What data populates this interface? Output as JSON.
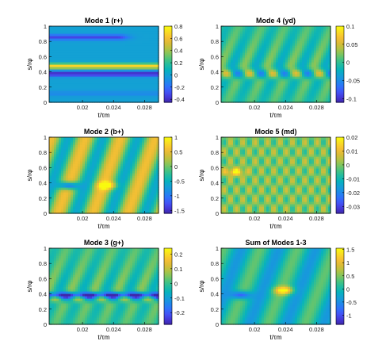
{
  "chart_data": [
    {
      "type": "heatmap",
      "title": "Mode 1 (r+)",
      "xlabel": "t/τm",
      "ylabel": "s/rφ",
      "xlim": [
        0.0157,
        0.0298
      ],
      "ylim": [
        0,
        1
      ],
      "xticks": [
        "0.02",
        "0.024",
        "0.028"
      ],
      "xtick_values": [
        0.02,
        0.024,
        0.028
      ],
      "yticks": [
        "0",
        "0.2",
        "0.4",
        "0.6",
        "0.8",
        "1"
      ],
      "clim": [
        -0.45,
        0.8
      ],
      "colorbar_ticks": [
        "-0.4",
        "-0.2",
        "0",
        "0.2",
        "0.4",
        "0.6",
        "0.8"
      ],
      "colorbar_values": [
        -0.4,
        -0.2,
        0,
        0.2,
        0.4,
        0.6,
        0.8
      ],
      "features": [
        {
          "kind": "band",
          "y": 0.86,
          "value": -0.32,
          "x_range": [
            0.0157,
            0.0245
          ]
        },
        {
          "kind": "band",
          "y": 0.48,
          "value": 0.7,
          "x_range": [
            0.0157,
            0.0298
          ]
        },
        {
          "kind": "band",
          "y": 0.38,
          "value": -0.42,
          "x_range": [
            0.0157,
            0.0298
          ]
        },
        {
          "kind": "band",
          "y": 0.12,
          "value": -0.1,
          "x_range": [
            0.0157,
            0.0298
          ]
        }
      ]
    },
    {
      "type": "heatmap",
      "title": "Mode 4 (yd)",
      "xlabel": "t/τm",
      "ylabel": "s/rφ",
      "xlim": [
        0.0157,
        0.0298
      ],
      "ylim": [
        0,
        1
      ],
      "xticks": [
        "0.02",
        "0.024",
        "0.028"
      ],
      "xtick_values": [
        0.02,
        0.024,
        0.028
      ],
      "yticks": [
        "0",
        "0.2",
        "0.4",
        "0.6",
        "0.8",
        "1"
      ],
      "clim": [
        -0.11,
        0.1
      ],
      "colorbar_ticks": [
        "-0.1",
        "-0.05",
        "0",
        "0.05",
        "0.1"
      ],
      "colorbar_values": [
        -0.1,
        -0.05,
        0,
        0.05,
        0.1
      ],
      "features": [
        {
          "kind": "wave",
          "y": 0.38,
          "value": 0.08,
          "period": 0.003
        }
      ]
    },
    {
      "type": "heatmap",
      "title": "Mode 2 (b+)",
      "xlabel": "t/τm",
      "ylabel": "s/rφ",
      "xlim": [
        0.0157,
        0.0298
      ],
      "ylim": [
        0,
        1
      ],
      "xticks": [
        "0.02",
        "0.024",
        "0.028"
      ],
      "xtick_values": [
        0.02,
        0.024,
        0.028
      ],
      "yticks": [
        "0",
        "0.2",
        "0.4",
        "0.6",
        "0.8",
        "1"
      ],
      "clim": [
        -1.6,
        1.0
      ],
      "colorbar_ticks": [
        "-1.5",
        "-1",
        "-0.5",
        "0",
        "0.5",
        "1"
      ],
      "colorbar_values": [
        -1.5,
        -1,
        -0.5,
        0,
        0.5,
        1
      ],
      "features": [
        {
          "kind": "diagonal_bands",
          "value": 0.6,
          "period": 0.0045
        },
        {
          "kind": "blob",
          "x": 0.0182,
          "y": 0.37,
          "value": -1.5
        },
        {
          "kind": "blob",
          "x": 0.0232,
          "y": 0.37,
          "value": 1.0
        }
      ]
    },
    {
      "type": "heatmap",
      "title": "Mode 5 (md)",
      "xlabel": "t/τm",
      "ylabel": "s/rφ",
      "xlim": [
        0.0157,
        0.0298
      ],
      "ylim": [
        0,
        1
      ],
      "xticks": [
        "0.02",
        "0.024",
        "0.028"
      ],
      "xtick_values": [
        0.02,
        0.024,
        0.028
      ],
      "yticks": [
        "0",
        "0.2",
        "0.4",
        "0.6",
        "0.8",
        "1"
      ],
      "clim": [
        -0.035,
        0.02
      ],
      "colorbar_ticks": [
        "-0.03",
        "-0.02",
        "-0.01",
        "0",
        "0.01",
        "0.02"
      ],
      "colorbar_values": [
        -0.03,
        -0.02,
        -0.01,
        0,
        0.01,
        0.02
      ],
      "features": [
        {
          "kind": "checker",
          "value": 0.008,
          "period": 0.0016
        },
        {
          "kind": "blob",
          "x": 0.0175,
          "y": 0.55,
          "value": 0.018
        }
      ]
    },
    {
      "type": "heatmap",
      "title": "Mode 3 (g+)",
      "xlabel": "t/τm",
      "ylabel": "s/rφ",
      "xlim": [
        0.0157,
        0.0298
      ],
      "ylim": [
        0,
        1
      ],
      "xticks": [
        "0.02",
        "0.024",
        "0.028"
      ],
      "xtick_values": [
        0.02,
        0.024,
        0.028
      ],
      "yticks": [
        "0",
        "0.2",
        "0.4",
        "0.6",
        "0.8",
        "1"
      ],
      "clim": [
        -0.28,
        0.24
      ],
      "colorbar_ticks": [
        "-0.2",
        "-0.1",
        "0",
        "0.1",
        "0.2"
      ],
      "colorbar_values": [
        -0.2,
        -0.1,
        0,
        0.1,
        0.2
      ],
      "features": [
        {
          "kind": "wave",
          "y": 0.36,
          "value": 0.18,
          "period": 0.003
        },
        {
          "kind": "band",
          "y": 0.39,
          "value": -0.25,
          "x_range": [
            0.0157,
            0.0298
          ]
        }
      ]
    },
    {
      "type": "heatmap",
      "title": "Sum of Modes 1-3",
      "xlabel": "t/τm",
      "ylabel": "s/rφ",
      "xlim": [
        0.0157,
        0.0298
      ],
      "ylim": [
        0,
        1
      ],
      "xticks": [
        "0.02",
        "0.024",
        "0.028"
      ],
      "xtick_values": [
        0.02,
        0.024,
        0.028
      ],
      "yticks": [
        "0",
        "0.2",
        "0.4",
        "0.6",
        "0.8",
        "1"
      ],
      "clim": [
        -1.35,
        1.55
      ],
      "colorbar_ticks": [
        "-1",
        "-0.5",
        "0",
        "0.5",
        "1",
        "1.5"
      ],
      "colorbar_values": [
        -1,
        -0.5,
        0,
        0.5,
        1,
        1.5
      ],
      "features": [
        {
          "kind": "blob",
          "x": 0.0183,
          "y": 0.39,
          "value": -1.2
        },
        {
          "kind": "blob",
          "x": 0.0238,
          "y": 0.45,
          "value": 1.4
        },
        {
          "kind": "diagonal_bands",
          "value": 0.4,
          "period": 0.0048
        }
      ]
    }
  ],
  "colormap": [
    "#3e26a8",
    "#4538d7",
    "#4354f6",
    "#2f72fb",
    "#1e8be8",
    "#14a0d5",
    "#07b2bd",
    "#21bca1",
    "#49c37f",
    "#82c55d",
    "#b4c242",
    "#dcbb36",
    "#f7c034",
    "#f9dc25",
    "#f9fb0e"
  ],
  "frame_color": "#000000"
}
